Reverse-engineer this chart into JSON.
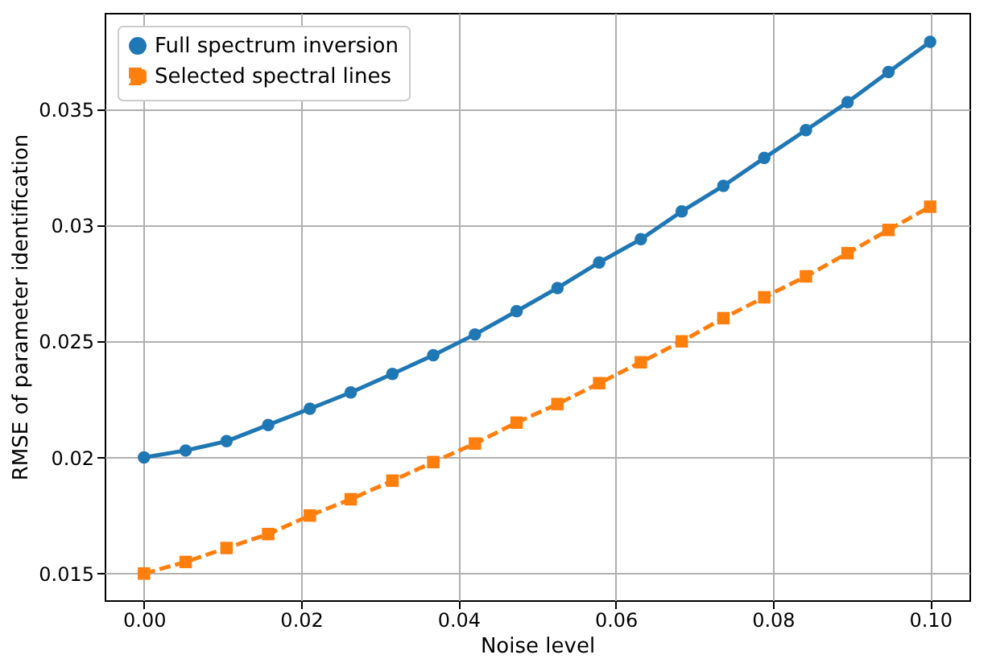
{
  "chart_data": {
    "type": "line",
    "xlabel": "Noise level",
    "ylabel": "RMSE of parameter identification",
    "x": [
      0,
      0.0053,
      0.0105,
      0.0158,
      0.0211,
      0.0263,
      0.0316,
      0.0368,
      0.0421,
      0.0474,
      0.0526,
      0.0579,
      0.0632,
      0.0684,
      0.0737,
      0.0789,
      0.0842,
      0.0895,
      0.0947,
      0.1
    ],
    "series": [
      {
        "name": "Full spectrum inversion",
        "color": "#1f77b4",
        "marker": "circle",
        "line_style": "solid",
        "values": [
          0.02,
          0.0203,
          0.0207,
          0.0214,
          0.0221,
          0.0228,
          0.0236,
          0.0244,
          0.0253,
          0.0263,
          0.0273,
          0.0284,
          0.0294,
          0.0306,
          0.0317,
          0.0329,
          0.0341,
          0.0353,
          0.0366,
          0.0379
        ]
      },
      {
        "name": "Selected spectral lines",
        "color": "#ff7f0e",
        "marker": "square",
        "line_style": "dashed",
        "values": [
          0.015,
          0.0155,
          0.0161,
          0.0167,
          0.0175,
          0.0182,
          0.019,
          0.0198,
          0.0206,
          0.0215,
          0.0223,
          0.0232,
          0.0241,
          0.025,
          0.026,
          0.0269,
          0.0278,
          0.0288,
          0.0298,
          0.0308
        ]
      }
    ],
    "xlim": [
      -0.005,
      0.105
    ],
    "xticks": [
      {
        "value": 0,
        "label": "0.00"
      },
      0.02,
      0.04,
      0.06,
      0.08,
      {
        "value": 0.1,
        "label": "0.10"
      }
    ],
    "ylim": [
      0.01385,
      0.03915
    ],
    "yticks": [
      0.015,
      0.02,
      0.025,
      0.03,
      0.035
    ],
    "grid": true,
    "legend": "top left"
  }
}
